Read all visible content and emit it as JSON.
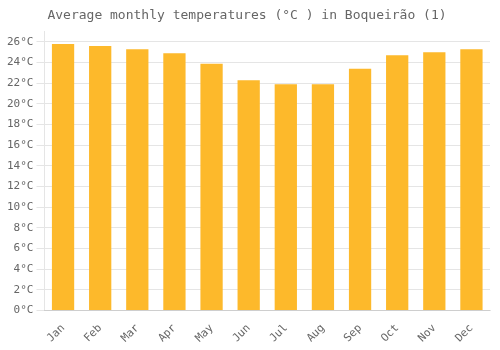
{
  "chart_data": {
    "type": "bar",
    "title": "Average monthly temperatures (°C ) in Boqueirão (1)",
    "categories": [
      "Jan",
      "Feb",
      "Mar",
      "Apr",
      "May",
      "Jun",
      "Jul",
      "Aug",
      "Sep",
      "Oct",
      "Nov",
      "Dec"
    ],
    "values": [
      25.8,
      25.6,
      25.3,
      24.9,
      23.9,
      22.3,
      21.9,
      21.9,
      23.4,
      24.7,
      25.0,
      25.3
    ],
    "color": "#FDB92B",
    "ylim": [
      0,
      27
    ],
    "yticks": [
      {
        "value": 0,
        "label": "0°C"
      },
      {
        "value": 2,
        "label": "2°C"
      },
      {
        "value": 4,
        "label": "4°C"
      },
      {
        "value": 6,
        "label": "6°C"
      },
      {
        "value": 8,
        "label": "8°C"
      },
      {
        "value": 10,
        "label": "10°C"
      },
      {
        "value": 12,
        "label": "12°C"
      },
      {
        "value": 14,
        "label": "14°C"
      },
      {
        "value": 16,
        "label": "16°C"
      },
      {
        "value": 18,
        "label": "18°C"
      },
      {
        "value": 20,
        "label": "20°C"
      },
      {
        "value": 22,
        "label": "22°C"
      },
      {
        "value": 24,
        "label": "24°C"
      },
      {
        "value": 26,
        "label": "26°C"
      }
    ],
    "grid": true
  }
}
